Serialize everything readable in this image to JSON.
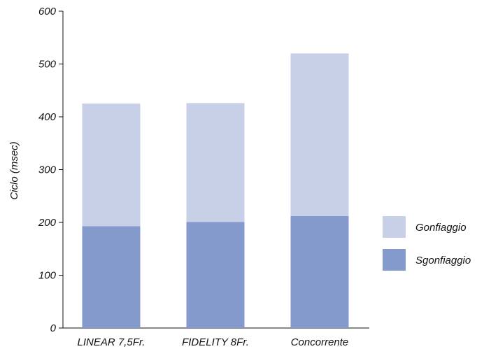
{
  "chart_data": {
    "type": "bar",
    "stacked": true,
    "categories": [
      "LINEAR 7,5Fr.",
      "FIDELITY 8Fr.",
      "Concorrente"
    ],
    "series": [
      {
        "name": "Sgonfiaggio",
        "values": [
          193,
          201,
          212
        ],
        "color": "#8499cc"
      },
      {
        "name": "Gonfiaggio",
        "values": [
          232,
          225,
          308
        ],
        "color": "#c8d0e8"
      }
    ],
    "xlabel": "",
    "ylabel": "Ciclo (msec)",
    "ylim": [
      0,
      600
    ],
    "yticks": [
      0,
      100,
      200,
      300,
      400,
      500,
      600
    ],
    "grid": false,
    "legend_position": "right"
  }
}
